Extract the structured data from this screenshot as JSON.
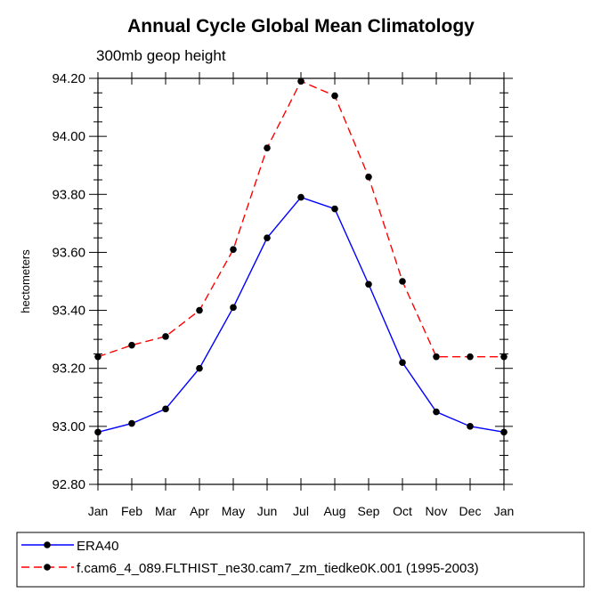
{
  "chart_data": {
    "type": "line",
    "title": "Annual Cycle Global Mean Climatology",
    "subtitle": "300mb geop height",
    "ylabel": "hectometers",
    "xlabel": "",
    "categories": [
      "Jan",
      "Feb",
      "Mar",
      "Apr",
      "May",
      "Jun",
      "Jul",
      "Aug",
      "Sep",
      "Oct",
      "Nov",
      "Dec",
      "Jan"
    ],
    "ylim": [
      92.8,
      94.2
    ],
    "yticks": [
      "92.80",
      "93.00",
      "93.20",
      "93.40",
      "93.60",
      "93.80",
      "94.00",
      "94.20"
    ],
    "series": [
      {
        "name": "ERA40",
        "color": "#0000ff",
        "dash": "solid",
        "values": [
          92.98,
          93.01,
          93.06,
          93.2,
          93.41,
          93.65,
          93.79,
          93.75,
          93.49,
          93.22,
          93.05,
          93.0,
          92.98
        ]
      },
      {
        "name": "f.cam6_4_089.FLTHIST_ne30.cam7_zm_tiedke0K.001 (1995-2003)",
        "color": "#ff0000",
        "dash": "dashed",
        "values": [
          93.24,
          93.28,
          93.31,
          93.4,
          93.61,
          93.96,
          94.19,
          94.14,
          93.86,
          93.5,
          93.24,
          93.24,
          93.24
        ]
      }
    ],
    "grid": false,
    "legend_position": "bottom"
  }
}
